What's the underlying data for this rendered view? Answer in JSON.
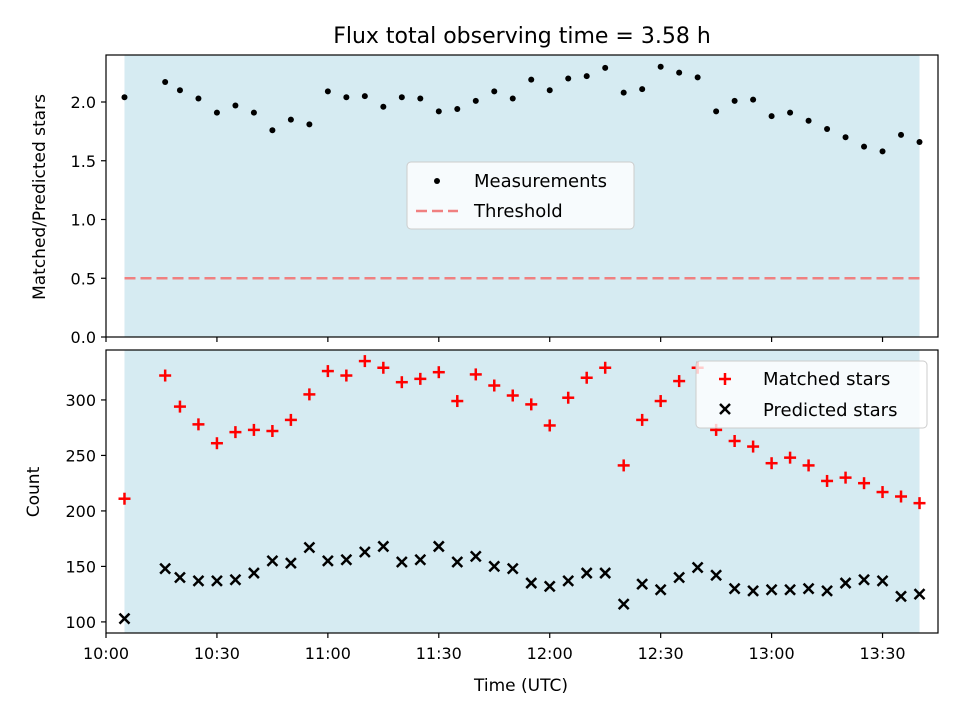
{
  "figure": {
    "title": "Flux total observing time = 3.58 h",
    "xlabel": "Time (UTC)"
  },
  "colors": {
    "shade": "#add8e6",
    "measurement": "#000000",
    "threshold": "#f08080",
    "matched": "#ff0000",
    "predicted": "#000000"
  },
  "chart_data": [
    {
      "type": "scatter",
      "ylabel": "Matched/Predicted stars",
      "xlim": [
        "10:00",
        "13:45"
      ],
      "ylim": [
        0,
        2.4
      ],
      "x_ticks": [
        "10:00",
        "10:30",
        "11:00",
        "11:30",
        "12:00",
        "12:30",
        "13:00",
        "13:30"
      ],
      "y_ticks": [
        "0.0",
        "0.5",
        "1.0",
        "1.5",
        "2.0"
      ],
      "observing_window": [
        "10:05",
        "13:40"
      ],
      "legend_position": "center",
      "series": [
        {
          "name": "Measurements",
          "marker": "dot",
          "x": [
            "10:05",
            "10:16",
            "10:20",
            "10:25",
            "10:30",
            "10:35",
            "10:40",
            "10:45",
            "10:50",
            "10:55",
            "11:00",
            "11:05",
            "11:10",
            "11:15",
            "11:20",
            "11:25",
            "11:30",
            "11:35",
            "11:40",
            "11:45",
            "11:50",
            "11:55",
            "12:00",
            "12:05",
            "12:10",
            "12:15",
            "12:20",
            "12:25",
            "12:30",
            "12:35",
            "12:40",
            "12:45",
            "12:50",
            "12:55",
            "13:00",
            "13:05",
            "13:10",
            "13:15",
            "13:20",
            "13:25",
            "13:30",
            "13:35",
            "13:40"
          ],
          "y": [
            2.04,
            2.17,
            2.1,
            2.03,
            1.91,
            1.97,
            1.91,
            1.76,
            1.85,
            1.81,
            2.09,
            2.04,
            2.05,
            1.96,
            2.04,
            2.03,
            1.92,
            1.94,
            2.01,
            2.09,
            2.03,
            2.19,
            2.1,
            2.2,
            2.22,
            2.29,
            2.08,
            2.11,
            2.3,
            2.25,
            2.21,
            1.92,
            2.01,
            2.02,
            1.88,
            1.91,
            1.84,
            1.77,
            1.7,
            1.62,
            1.58,
            1.72,
            1.66
          ]
        },
        {
          "name": "Threshold",
          "marker": "dashed-line",
          "x": [
            "10:05",
            "13:40"
          ],
          "y": [
            0.5,
            0.5
          ]
        }
      ]
    },
    {
      "type": "scatter",
      "ylabel": "Count",
      "xlim": [
        "10:00",
        "13:45"
      ],
      "ylim": [
        90,
        345
      ],
      "x_ticks": [
        "10:00",
        "10:30",
        "11:00",
        "11:30",
        "12:00",
        "12:30",
        "13:00",
        "13:30"
      ],
      "y_ticks": [
        "100",
        "150",
        "200",
        "250",
        "300"
      ],
      "observing_window": [
        "10:05",
        "13:40"
      ],
      "legend_position": "top-right",
      "series": [
        {
          "name": "Matched stars",
          "marker": "plus",
          "x": [
            "10:05",
            "10:16",
            "10:20",
            "10:25",
            "10:30",
            "10:35",
            "10:40",
            "10:45",
            "10:50",
            "10:55",
            "11:00",
            "11:05",
            "11:10",
            "11:15",
            "11:20",
            "11:25",
            "11:30",
            "11:35",
            "11:40",
            "11:45",
            "11:50",
            "11:55",
            "12:00",
            "12:05",
            "12:10",
            "12:15",
            "12:20",
            "12:25",
            "12:30",
            "12:35",
            "12:40",
            "12:45",
            "12:50",
            "12:55",
            "13:00",
            "13:05",
            "13:10",
            "13:15",
            "13:20",
            "13:25",
            "13:30",
            "13:35",
            "13:40"
          ],
          "y": [
            211,
            322,
            294,
            278,
            261,
            271,
            273,
            272,
            282,
            305,
            326,
            322,
            335,
            329,
            316,
            319,
            325,
            299,
            323,
            313,
            304,
            296,
            277,
            302,
            320,
            329,
            241,
            282,
            299,
            317,
            329,
            273,
            263,
            258,
            243,
            248,
            241,
            227,
            230,
            225,
            217,
            213,
            207
          ]
        },
        {
          "name": "Predicted stars",
          "marker": "x",
          "x": [
            "10:05",
            "10:16",
            "10:20",
            "10:25",
            "10:30",
            "10:35",
            "10:40",
            "10:45",
            "10:50",
            "10:55",
            "11:00",
            "11:05",
            "11:10",
            "11:15",
            "11:20",
            "11:25",
            "11:30",
            "11:35",
            "11:40",
            "11:45",
            "11:50",
            "11:55",
            "12:00",
            "12:05",
            "12:10",
            "12:15",
            "12:20",
            "12:25",
            "12:30",
            "12:35",
            "12:40",
            "12:45",
            "12:50",
            "12:55",
            "13:00",
            "13:05",
            "13:10",
            "13:15",
            "13:20",
            "13:25",
            "13:30",
            "13:35",
            "13:40"
          ],
          "y": [
            103,
            148,
            140,
            137,
            137,
            138,
            144,
            155,
            153,
            167,
            155,
            156,
            163,
            168,
            154,
            156,
            168,
            154,
            159,
            150,
            148,
            135,
            132,
            137,
            144,
            144,
            116,
            134,
            129,
            140,
            149,
            142,
            130,
            128,
            129,
            129,
            130,
            128,
            135,
            138,
            137,
            123,
            125
          ]
        }
      ]
    }
  ]
}
